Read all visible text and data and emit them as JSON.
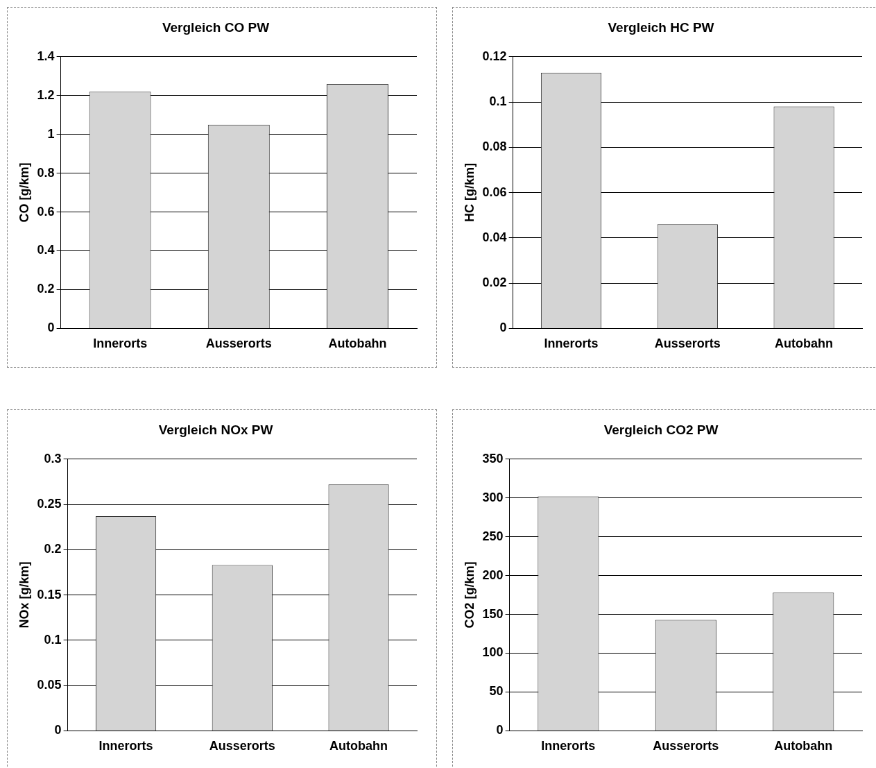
{
  "chart_data": [
    {
      "type": "bar",
      "title": "Vergleich CO PW",
      "ylabel": "CO [g/km]",
      "categories": [
        "Innerorts",
        "Ausserorts",
        "Autobahn"
      ],
      "values": [
        1.22,
        1.05,
        1.26
      ],
      "color": "#d4d4d4",
      "ylim": [
        0,
        1.4
      ],
      "yticks": [
        0,
        0.2,
        0.4,
        0.6,
        0.8,
        1,
        1.2,
        1.4
      ],
      "grid": "y"
    },
    {
      "type": "bar",
      "title": "Vergleich HC PW",
      "ylabel": "HC [g/km]",
      "categories": [
        "Innerorts",
        "Ausserorts",
        "Autobahn"
      ],
      "values": [
        0.113,
        0.046,
        0.098
      ],
      "color": "#d4d4d4",
      "ylim": [
        0,
        0.12
      ],
      "yticks": [
        0,
        0.02,
        0.04,
        0.06,
        0.08,
        0.1,
        0.12
      ],
      "grid": "y"
    },
    {
      "type": "bar",
      "title": "Vergleich NOx PW",
      "ylabel": "NOx [g/km]",
      "categories": [
        "Innerorts",
        "Ausserorts",
        "Autobahn"
      ],
      "values": [
        0.237,
        0.183,
        0.272
      ],
      "color": "#d4d4d4",
      "ylim": [
        0,
        0.3
      ],
      "yticks": [
        0,
        0.05,
        0.1,
        0.15,
        0.2,
        0.25,
        0.3
      ],
      "grid": "y"
    },
    {
      "type": "bar",
      "title": "Vergleich CO2 PW",
      "ylabel": "CO2 [g/km]",
      "categories": [
        "Innerorts",
        "Ausserorts",
        "Autobahn"
      ],
      "values": [
        302,
        143,
        178
      ],
      "color": "#d4d4d4",
      "ylim": [
        0,
        350
      ],
      "yticks": [
        0,
        50,
        100,
        150,
        200,
        250,
        300,
        350
      ],
      "grid": "y"
    }
  ]
}
